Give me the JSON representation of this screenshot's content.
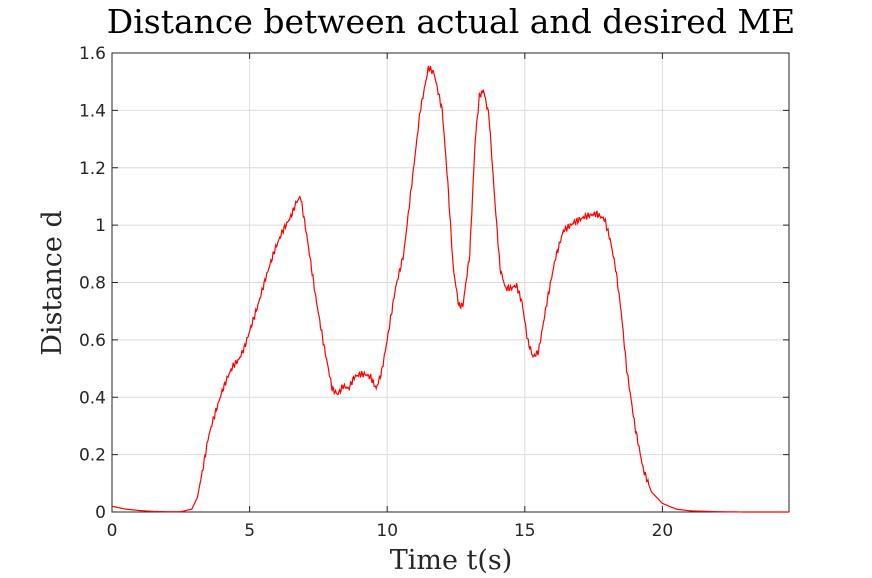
{
  "chart_data": {
    "type": "line",
    "title": "Distance between actual and desired ME",
    "xlabel": "Time t(s)",
    "ylabel": "Distance d",
    "xlim": [
      0,
      24.6
    ],
    "ylim": [
      0,
      1.6
    ],
    "xticks": [
      0,
      5,
      10,
      15,
      20
    ],
    "xtick_labels": [
      "0",
      "5",
      "10",
      "15",
      "20"
    ],
    "yticks": [
      0,
      0.2,
      0.4,
      0.6,
      0.8,
      1.0,
      1.2,
      1.4,
      1.6
    ],
    "ytick_labels": [
      "0",
      "0.2",
      "0.4",
      "0.6",
      "0.8",
      "1",
      "1.2",
      "1.4",
      "1.6"
    ],
    "grid": true,
    "box": true,
    "series": [
      {
        "color": "#ff0000",
        "x": [
          0,
          0.5,
          1,
          1.5,
          2,
          2.5,
          2.9,
          3.1,
          3.3,
          3.5,
          3.7,
          4,
          4.2,
          4.4,
          4.6,
          4.8,
          5,
          5.3,
          5.6,
          5.9,
          6.2,
          6.5,
          6.7,
          6.85,
          7.1,
          7.4,
          7.7,
          8,
          8.2,
          8.4,
          8.6,
          8.8,
          9,
          9.2,
          9.4,
          9.6,
          9.8,
          10,
          10.3,
          10.6,
          10.9,
          11.2,
          11.5,
          11.7,
          12,
          12.2,
          12.4,
          12.6,
          12.75,
          13,
          13.2,
          13.35,
          13.5,
          13.7,
          13.9,
          14.1,
          14.3,
          14.5,
          14.7,
          14.9,
          15.1,
          15.3,
          15.5,
          15.8,
          16.1,
          16.4,
          16.8,
          17.2,
          17.6,
          17.9,
          18.1,
          18.3,
          18.5,
          18.7,
          19,
          19.3,
          19.6,
          20,
          20.5,
          21,
          22,
          23,
          24.6
        ],
        "y": [
          0.02,
          0.01,
          0.005,
          0.002,
          0.001,
          0.001,
          0.01,
          0.05,
          0.15,
          0.26,
          0.33,
          0.42,
          0.47,
          0.51,
          0.53,
          0.57,
          0.63,
          0.72,
          0.82,
          0.91,
          0.98,
          1.03,
          1.08,
          1.1,
          0.95,
          0.75,
          0.58,
          0.43,
          0.41,
          0.44,
          0.43,
          0.47,
          0.48,
          0.48,
          0.47,
          0.43,
          0.49,
          0.6,
          0.78,
          0.9,
          1.15,
          1.4,
          1.55,
          1.53,
          1.4,
          1.15,
          0.85,
          0.72,
          0.72,
          0.9,
          1.3,
          1.45,
          1.47,
          1.38,
          1.1,
          0.85,
          0.78,
          0.78,
          0.79,
          0.73,
          0.6,
          0.54,
          0.56,
          0.73,
          0.88,
          0.98,
          1.01,
          1.03,
          1.04,
          1.02,
          0.95,
          0.85,
          0.7,
          0.5,
          0.3,
          0.15,
          0.07,
          0.03,
          0.01,
          0.004,
          0.001,
          0.0,
          0.0
        ]
      }
    ]
  }
}
